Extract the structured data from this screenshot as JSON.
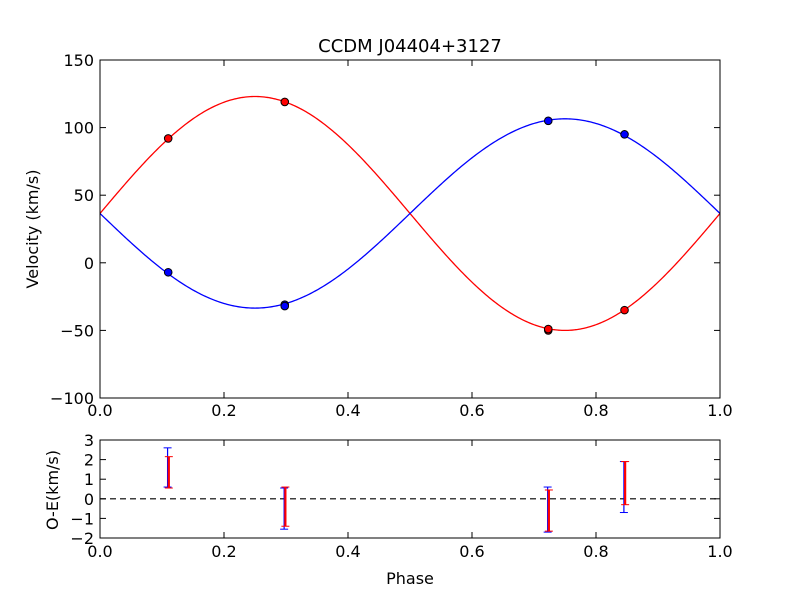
{
  "chart_data": [
    {
      "type": "line",
      "title": "CCDM J04404+3127",
      "xlabel": "",
      "ylabel": "Velocity (km/s)",
      "xlim": [
        0.0,
        1.0
      ],
      "ylim": [
        -100,
        150
      ],
      "xticks": [
        "0.0",
        "0.2",
        "0.4",
        "0.6",
        "0.8",
        "1.0"
      ],
      "yticks": [
        "−100",
        "−50",
        "0",
        "50",
        "100",
        "150"
      ],
      "grid": false,
      "series": [
        {
          "color": "#ff0000",
          "curve": {
            "gamma": 36.5,
            "amplitude": 86.5,
            "phase_peak": 0.25
          },
          "points": [
            {
              "x": 0.11,
              "y": 92
            },
            {
              "x": 0.298,
              "y": 119
            },
            {
              "x": 0.723,
              "y": -50
            },
            {
              "x": 0.723,
              "y": -49
            },
            {
              "x": 0.846,
              "y": -35
            }
          ]
        },
        {
          "color": "#0000ff",
          "curve": {
            "gamma": 36.5,
            "amplitude": -70.0,
            "phase_peak": 0.25
          },
          "points": [
            {
              "x": 0.11,
              "y": -7
            },
            {
              "x": 0.298,
              "y": -31
            },
            {
              "x": 0.298,
              "y": -32
            },
            {
              "x": 0.723,
              "y": 105
            },
            {
              "x": 0.846,
              "y": 95
            }
          ]
        }
      ]
    },
    {
      "type": "scatter",
      "title": "",
      "xlabel": "Phase",
      "ylabel": "O-E(km/s)",
      "xlim": [
        0.0,
        1.0
      ],
      "ylim": [
        -2,
        3
      ],
      "xticks": [
        "0.0",
        "0.2",
        "0.4",
        "0.6",
        "0.8",
        "1.0"
      ],
      "yticks": [
        "−2",
        "−1",
        "0",
        "1",
        "2",
        "3"
      ],
      "zero_line": "dashed",
      "grid": false,
      "residuals": [
        {
          "color": "#0000ff",
          "x": 0.109,
          "y": 1.6,
          "err": 1.0
        },
        {
          "color": "#ff0000",
          "x": 0.111,
          "y": 1.35,
          "err": 0.8
        },
        {
          "color": "#0000ff",
          "x": 0.297,
          "y": -0.5,
          "err": 1.05
        },
        {
          "color": "#ff0000",
          "x": 0.299,
          "y": -0.4,
          "err": 1.0
        },
        {
          "color": "#0000ff",
          "x": 0.722,
          "y": -0.55,
          "err": 1.15
        },
        {
          "color": "#ff0000",
          "x": 0.724,
          "y": -0.6,
          "err": 1.05
        },
        {
          "color": "#0000ff",
          "x": 0.845,
          "y": 0.6,
          "err": 1.3
        },
        {
          "color": "#ff0000",
          "x": 0.847,
          "y": 0.8,
          "err": 1.1
        }
      ]
    }
  ]
}
